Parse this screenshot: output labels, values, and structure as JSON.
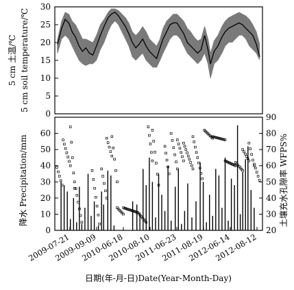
{
  "chart_data": [
    {
      "type": "line",
      "panel": "top",
      "ylabel_zh": "5 cm 土温/℃",
      "ylabel_en": "5 cm soil temperature/℃",
      "ylim": [
        0,
        30
      ],
      "yticks": [
        "0",
        "5",
        "10",
        "15",
        "20",
        "25",
        "30"
      ],
      "series": [
        {
          "x": [
            "2009-07-01",
            "2009-07-25",
            "2009-08-15",
            "2009-09-05",
            "2009-09-25",
            "2009-10-15",
            "2009-11-05",
            "2009-11-25",
            "2009-12-15",
            "2010-01-05",
            "2010-01-25",
            "2010-02-15",
            "2010-03-10",
            "2010-04-01",
            "2010-04-25",
            "2010-05-15",
            "2010-06-05",
            "2010-06-25",
            "2010-07-15",
            "2010-08-05",
            "2010-08-25",
            "2010-09-15",
            "2010-10-05",
            "2010-10-25",
            "2010-11-15",
            "2010-12-05",
            "2010-12-25",
            "2011-01-15",
            "2011-02-05",
            "2011-02-25",
            "2011-03-15",
            "2011-04-05",
            "2011-04-25",
            "2011-05-15",
            "2011-06-05",
            "2011-06-25",
            "2011-07-15",
            "2011-08-05",
            "2011-08-25",
            "2011-09-15",
            "2011-10-05",
            "2011-10-25",
            "2011-11-15",
            "2011-12-05",
            "2011-12-20",
            "2012-01-10",
            "2012-02-01",
            "2012-02-25",
            "2012-03-15",
            "2012-04-05",
            "2012-04-25",
            "2012-05-15",
            "2012-06-05",
            "2012-06-25",
            "2012-07-15",
            "2012-08-05",
            "2012-08-25",
            "2012-09-15",
            "2012-10-05"
          ],
          "values": [
            19.5,
            24,
            26.5,
            25.5,
            23,
            21.5,
            19,
            17.5,
            18.5,
            17,
            16.5,
            19,
            22,
            24.5,
            27,
            28,
            28.5,
            27.5,
            26,
            24.5,
            22.5,
            20,
            18.5,
            19.5,
            21,
            19,
            17.5,
            16.5,
            15.5,
            18.5,
            21,
            23,
            25,
            25.5,
            25.5,
            24,
            22.5,
            20,
            19,
            18,
            17,
            18,
            22,
            18,
            14,
            17.5,
            19,
            21.5,
            23,
            24,
            24.5,
            25,
            25.5,
            25,
            24,
            23,
            22,
            19.5,
            16
          ],
          "range_low": [
            17,
            21,
            22,
            21,
            19,
            17,
            15,
            14,
            13.5,
            14,
            14,
            15,
            18,
            20,
            23,
            25,
            26,
            25,
            23,
            21,
            19,
            16,
            15,
            16,
            17,
            15,
            14,
            13,
            13,
            15,
            17,
            19,
            21,
            22,
            22,
            21,
            19,
            17,
            16,
            15,
            14,
            15,
            17,
            14,
            10,
            14,
            15,
            17,
            19,
            20,
            20,
            21,
            22,
            22,
            21,
            19,
            18,
            17,
            15
          ],
          "range_high": [
            21,
            26,
            28.5,
            28,
            26,
            25,
            23,
            21,
            21,
            20.5,
            20,
            22,
            25,
            26.5,
            28.5,
            29.5,
            29.5,
            29,
            28,
            27,
            25.5,
            23,
            22,
            23,
            24.5,
            23,
            21,
            20,
            19,
            21,
            24,
            26,
            27,
            28,
            28,
            27,
            26,
            24,
            23,
            21.5,
            20.5,
            21,
            24.5,
            21,
            17,
            20.5,
            22,
            24.5,
            26,
            27,
            27.5,
            28,
            28.5,
            28,
            27.5,
            26.5,
            25,
            23,
            19.5
          ]
        }
      ]
    },
    {
      "type": "bar+scatter",
      "panel": "bottom",
      "xlabel": "日期(年-月-日)Date(Year-Month-Day)",
      "ylabel_left": "降水 Precipitation/mm",
      "ylabel_right": "土壤充水孔隙率 WFPS%",
      "ylim_left": [
        0,
        70
      ],
      "yticks_left": [
        "0",
        "10",
        "20",
        "30",
        "40",
        "50",
        "60"
      ],
      "ylim_right": [
        20,
        90
      ],
      "yticks_right": [
        "20",
        "30",
        "40",
        "50",
        "60",
        "70",
        "80",
        "90"
      ],
      "xticks": [
        "2009-07-21",
        "2009-09-09",
        "2010-06-18",
        "2010-08-10",
        "2011-06-23",
        "2011-08-19",
        "2012-06-14",
        "2012-08-12"
      ],
      "precipitation": [
        {
          "x": 0.03,
          "v": 30
        },
        {
          "x": 0.045,
          "v": 28
        },
        {
          "x": 0.06,
          "v": 24
        },
        {
          "x": 0.075,
          "v": 7
        },
        {
          "x": 0.09,
          "v": 20
        },
        {
          "x": 0.105,
          "v": 5
        },
        {
          "x": 0.118,
          "v": 27
        },
        {
          "x": 0.13,
          "v": 4
        },
        {
          "x": 0.145,
          "v": 14
        },
        {
          "x": 0.16,
          "v": 35
        },
        {
          "x": 0.175,
          "v": 9
        },
        {
          "x": 0.19,
          "v": 18
        },
        {
          "x": 0.21,
          "v": 3
        },
        {
          "x": 0.225,
          "v": 24
        },
        {
          "x": 0.235,
          "v": 16
        },
        {
          "x": 0.255,
          "v": 37
        },
        {
          "x": 0.27,
          "v": 34
        },
        {
          "x": 0.285,
          "v": 3
        },
        {
          "x": 0.375,
          "v": 18
        },
        {
          "x": 0.395,
          "v": 16
        },
        {
          "x": 0.41,
          "v": 11
        },
        {
          "x": 0.425,
          "v": 38
        },
        {
          "x": 0.44,
          "v": 28
        },
        {
          "x": 0.455,
          "v": 45
        },
        {
          "x": 0.47,
          "v": 30
        },
        {
          "x": 0.485,
          "v": 8
        },
        {
          "x": 0.5,
          "v": 35
        },
        {
          "x": 0.515,
          "v": 22
        },
        {
          "x": 0.53,
          "v": 12
        },
        {
          "x": 0.545,
          "v": 40
        },
        {
          "x": 0.56,
          "v": 6
        },
        {
          "x": 0.58,
          "v": 27
        },
        {
          "x": 0.595,
          "v": 38
        },
        {
          "x": 0.61,
          "v": 4
        },
        {
          "x": 0.625,
          "v": 12
        },
        {
          "x": 0.64,
          "v": 29
        },
        {
          "x": 0.66,
          "v": 8
        },
        {
          "x": 0.68,
          "v": 18
        },
        {
          "x": 0.7,
          "v": 42
        },
        {
          "x": 0.715,
          "v": 30
        },
        {
          "x": 0.73,
          "v": 5
        },
        {
          "x": 0.745,
          "v": 22
        },
        {
          "x": 0.76,
          "v": 9
        },
        {
          "x": 0.775,
          "v": 38
        },
        {
          "x": 0.79,
          "v": 34
        },
        {
          "x": 0.805,
          "v": 14
        },
        {
          "x": 0.82,
          "v": 45
        },
        {
          "x": 0.835,
          "v": 6
        },
        {
          "x": 0.85,
          "v": 32
        },
        {
          "x": 0.865,
          "v": 28
        },
        {
          "x": 0.88,
          "v": 65
        },
        {
          "x": 0.893,
          "v": 10
        },
        {
          "x": 0.905,
          "v": 36
        },
        {
          "x": 0.918,
          "v": 44
        },
        {
          "x": 0.93,
          "v": 52
        },
        {
          "x": 0.945,
          "v": 25
        },
        {
          "x": 0.96,
          "v": 14
        }
      ],
      "wfps_segments": [
        {
          "x0": 0.01,
          "x1": 0.035,
          "y0": 59,
          "y1": 48
        },
        {
          "x0": 0.04,
          "x1": 0.075,
          "y0": 76,
          "y1": 60
        },
        {
          "x0": 0.075,
          "x1": 0.095,
          "y0": 84,
          "y1": 46
        },
        {
          "x0": 0.095,
          "x1": 0.13,
          "y0": 50,
          "y1": 25
        },
        {
          "x0": 0.18,
          "x1": 0.215,
          "y0": 57,
          "y1": 24
        },
        {
          "x0": 0.225,
          "x1": 0.25,
          "y0": 58,
          "y1": 40
        },
        {
          "x0": 0.25,
          "x1": 0.275,
          "y0": 77,
          "y1": 66
        },
        {
          "x0": 0.275,
          "x1": 0.3,
          "y0": 78,
          "y1": 50
        },
        {
          "x0": 0.3,
          "x1": 0.33,
          "y0": 34,
          "y1": 30
        },
        {
          "x0": 0.33,
          "x1": 0.4,
          "y0": 34,
          "y1": 31
        },
        {
          "x0": 0.4,
          "x1": 0.44,
          "y0": 31,
          "y1": 25
        },
        {
          "x0": 0.45,
          "x1": 0.47,
          "y0": 84,
          "y1": 63
        },
        {
          "x0": 0.47,
          "x1": 0.5,
          "y0": 82,
          "y1": 48
        },
        {
          "x0": 0.53,
          "x1": 0.55,
          "y0": 72,
          "y1": 55
        },
        {
          "x0": 0.56,
          "x1": 0.59,
          "y0": 80,
          "y1": 58
        },
        {
          "x0": 0.59,
          "x1": 0.62,
          "y0": 76,
          "y1": 63
        },
        {
          "x0": 0.62,
          "x1": 0.665,
          "y0": 74,
          "y1": 58
        },
        {
          "x0": 0.665,
          "x1": 0.71,
          "y0": 78,
          "y1": 52
        },
        {
          "x0": 0.72,
          "x1": 0.76,
          "y0": 82,
          "y1": 77
        },
        {
          "x0": 0.76,
          "x1": 0.82,
          "y0": 78,
          "y1": 76
        },
        {
          "x0": 0.82,
          "x1": 0.87,
          "y0": 63,
          "y1": 60
        },
        {
          "x0": 0.87,
          "x1": 0.905,
          "y0": 62,
          "y1": 57
        },
        {
          "x0": 0.905,
          "x1": 0.935,
          "y0": 70,
          "y1": 63
        },
        {
          "x0": 0.935,
          "x1": 0.96,
          "y0": 74,
          "y1": 60
        },
        {
          "x0": 0.96,
          "x1": 0.985,
          "y0": 61,
          "y1": 51
        }
      ]
    }
  ]
}
